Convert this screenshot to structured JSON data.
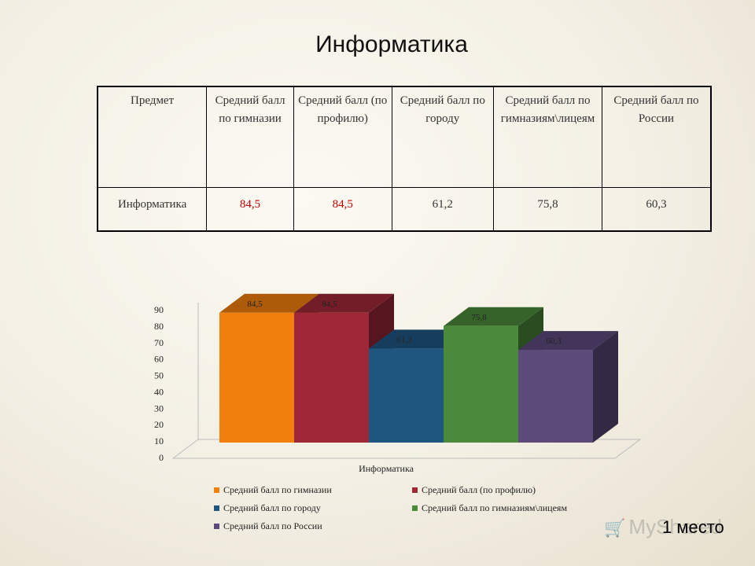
{
  "title": "Информатика",
  "table": {
    "headers": [
      "Предмет",
      "Средний балл по гимназии",
      "Средний балл (по профилю)",
      "Средний балл по городу",
      "Средний балл по гимназиям\\лицеям",
      "Средний балл по России"
    ],
    "row": [
      "Информатика",
      "84,5",
      "84,5",
      "61,2",
      "75,8",
      "60,3"
    ]
  },
  "chart_data": {
    "type": "bar",
    "categories": [
      "Информатика"
    ],
    "xlabel": "Информатика",
    "ylim": [
      0,
      90
    ],
    "yticks": [
      "0",
      "10",
      "20",
      "30",
      "40",
      "50",
      "60",
      "70",
      "80",
      "90"
    ],
    "grid": false,
    "legend_position": "bottom",
    "series": [
      {
        "name": "Средний балл по гимназии",
        "values": [
          84.5
        ],
        "label": "84,5",
        "color": "#f07f0c"
      },
      {
        "name": "Средний балл  (по профилю)",
        "values": [
          84.5
        ],
        "label": "84,5",
        "color": "#9e2838"
      },
      {
        "name": "Средний балл  по городу",
        "values": [
          61.2
        ],
        "label": "61,2",
        "color": "#1f5680"
      },
      {
        "name": "Средний балл  по гимназиям\\лицеям",
        "values": [
          75.8
        ],
        "label": "75,8",
        "color": "#4b8a3a"
      },
      {
        "name": "Средний балл  по России",
        "values": [
          60.3
        ],
        "label": "60,3",
        "color": "#5c4a7b"
      }
    ]
  },
  "watermark": "MyShared",
  "footnote": "1 место"
}
